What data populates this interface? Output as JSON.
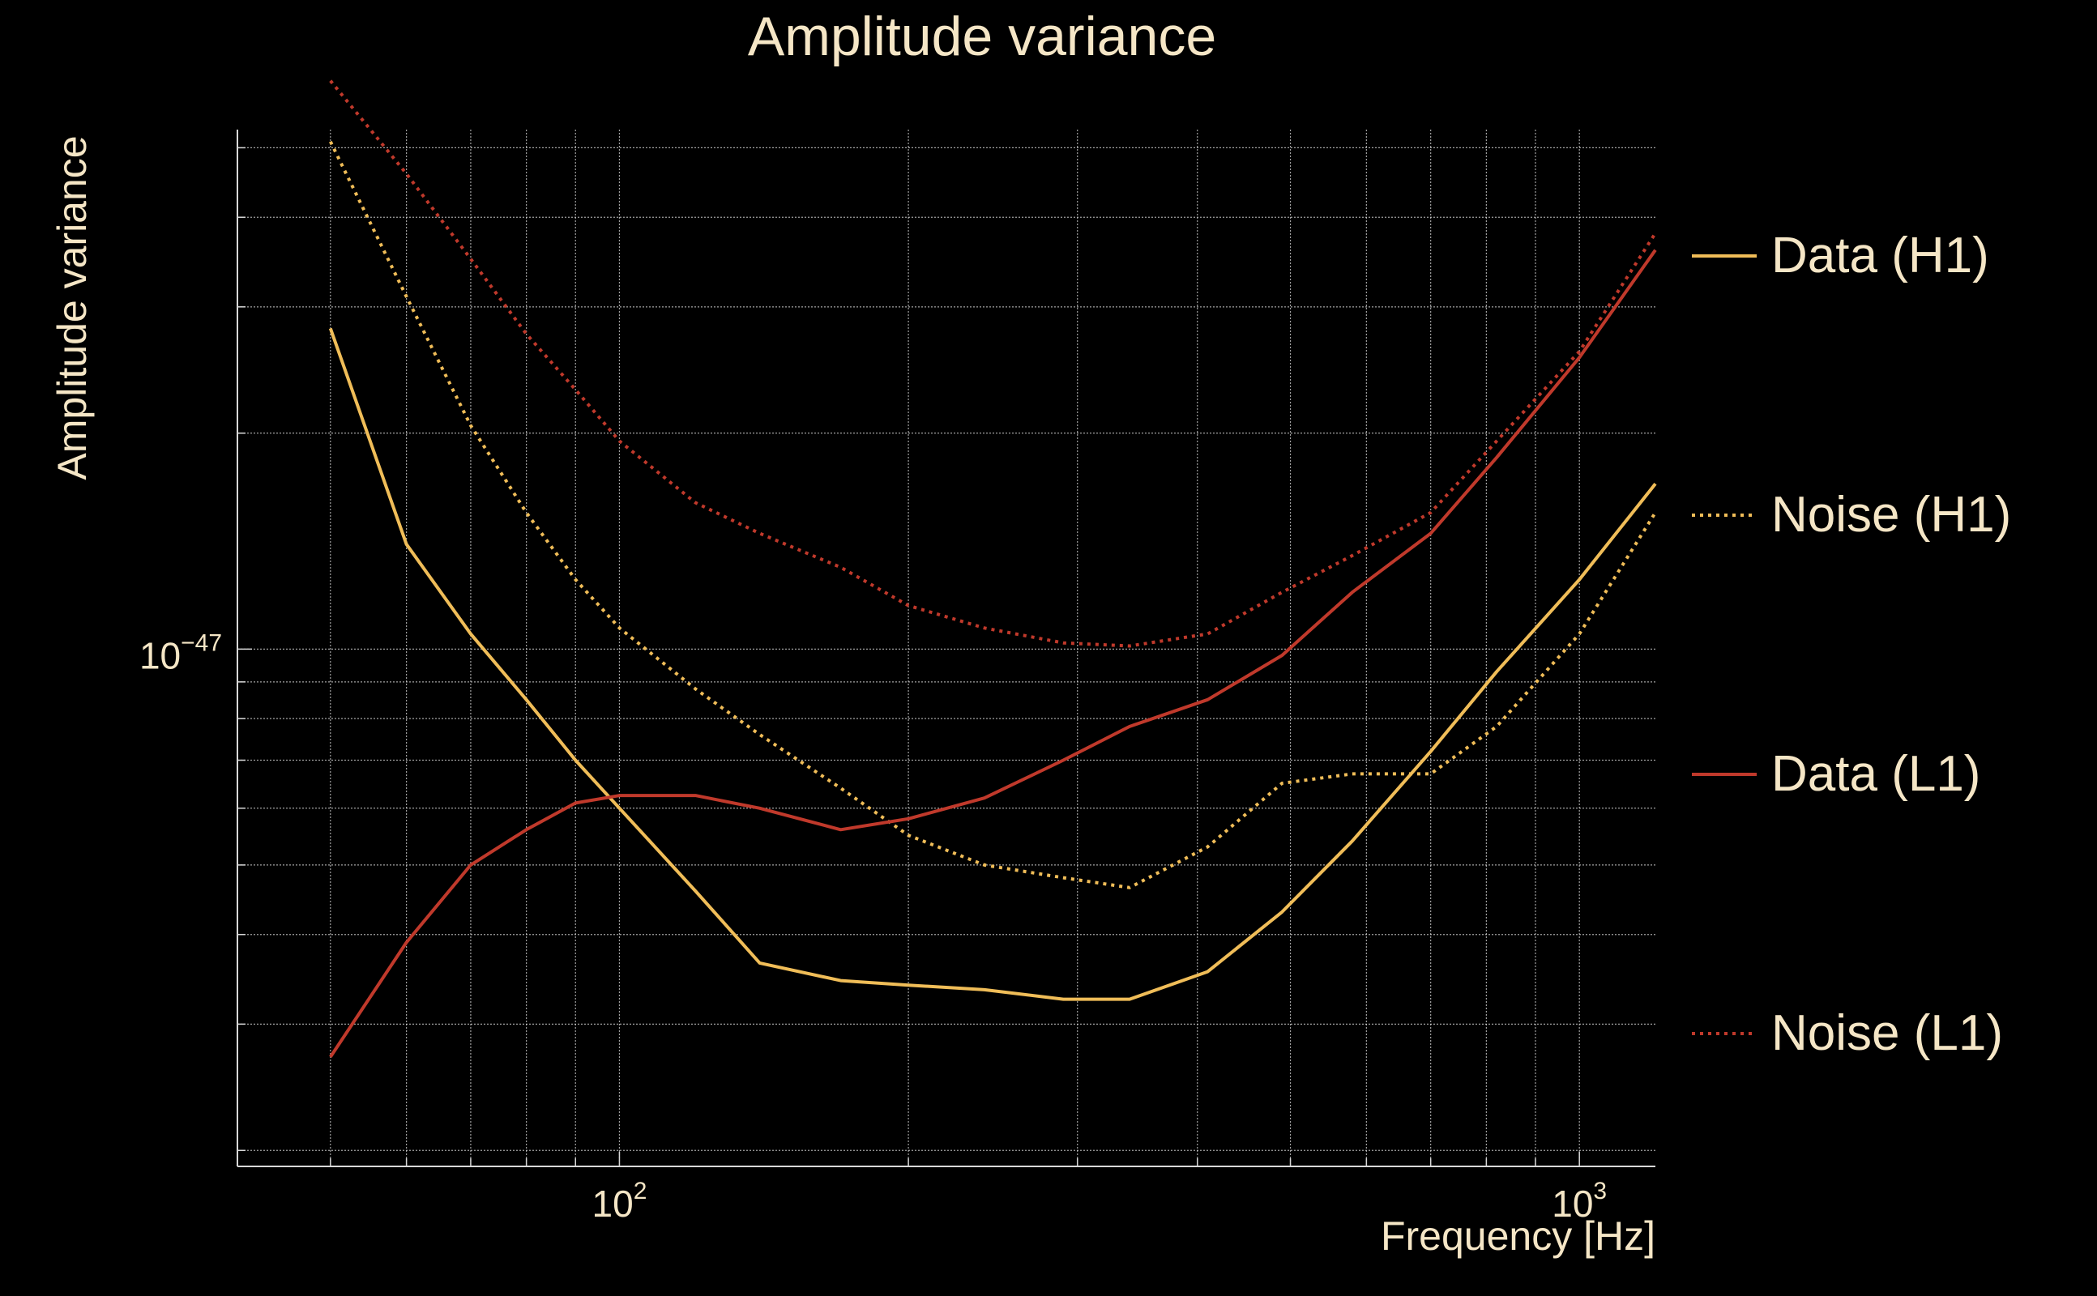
{
  "colors": {
    "background": "#000000",
    "text": "#f5e6c6",
    "grid": "#d8d8d8",
    "data_h1": "#f0bd58",
    "data_l1": "#c0392b"
  },
  "chart_data": {
    "type": "line",
    "title": "Amplitude variance",
    "xlabel": "Frequency [Hz]",
    "ylabel": "Amplitude variance",
    "x_scale": "log",
    "y_scale": "log",
    "xlim": [
      40,
      1200
    ],
    "ylim": [
      1.9e-48,
      5.3e-47
    ],
    "x_ticks": [
      {
        "value": 100,
        "base": "10",
        "exp": "2"
      },
      {
        "value": 1000,
        "base": "10",
        "exp": "3"
      }
    ],
    "y_ticks": [
      {
        "value": 1e-47,
        "base": "10",
        "exp": "−47"
      }
    ],
    "grid": true,
    "legend_position": "right",
    "x": [
      50,
      60,
      70,
      80,
      90,
      100,
      120,
      140,
      170,
      200,
      240,
      290,
      340,
      410,
      490,
      580,
      700,
      820,
      1000,
      1200
    ],
    "series": [
      {
        "name": "Data (H1)",
        "style": "solid",
        "color": "#f0bd58",
        "values": [
          2.8e-47,
          1.4e-47,
          1.05e-47,
          8.5e-48,
          7e-48,
          6e-48,
          4.6e-48,
          3.65e-48,
          3.45e-48,
          3.4e-48,
          3.35e-48,
          3.25e-48,
          3.25e-48,
          3.55e-48,
          4.3e-48,
          5.4e-48,
          7.2e-48,
          9.3e-48,
          1.25e-47,
          1.7e-47
        ]
      },
      {
        "name": "Noise (H1)",
        "style": "dotted",
        "color": "#f0bd58",
        "values": [
          5.1e-47,
          3.1e-47,
          2.05e-47,
          1.55e-47,
          1.25e-47,
          1.07e-47,
          8.8e-48,
          7.6e-48,
          6.4e-48,
          5.5e-48,
          5e-48,
          4.8e-48,
          4.65e-48,
          5.3e-48,
          6.5e-48,
          6.7e-48,
          6.7e-48,
          7.8e-48,
          1.05e-47,
          1.55e-47
        ]
      },
      {
        "name": "Data (L1)",
        "style": "solid",
        "color": "#c0392b",
        "values": [
          2.7e-48,
          3.9e-48,
          5e-48,
          5.6e-48,
          6.1e-48,
          6.25e-48,
          6.25e-48,
          6e-48,
          5.6e-48,
          5.8e-48,
          6.2e-48,
          7e-48,
          7.8e-48,
          8.5e-48,
          9.8e-48,
          1.2e-47,
          1.45e-47,
          1.85e-47,
          2.55e-47,
          3.6e-47
        ]
      },
      {
        "name": "Noise (L1)",
        "style": "dotted",
        "color": "#c0392b",
        "values": [
          6.2e-47,
          4.6e-47,
          3.5e-47,
          2.75e-47,
          2.3e-47,
          1.95e-47,
          1.6e-47,
          1.45e-47,
          1.3e-47,
          1.15e-47,
          1.07e-47,
          1.02e-47,
          1.01e-47,
          1.05e-47,
          1.2e-47,
          1.35e-47,
          1.55e-47,
          1.95e-47,
          2.6e-47,
          3.8e-47
        ]
      }
    ]
  }
}
